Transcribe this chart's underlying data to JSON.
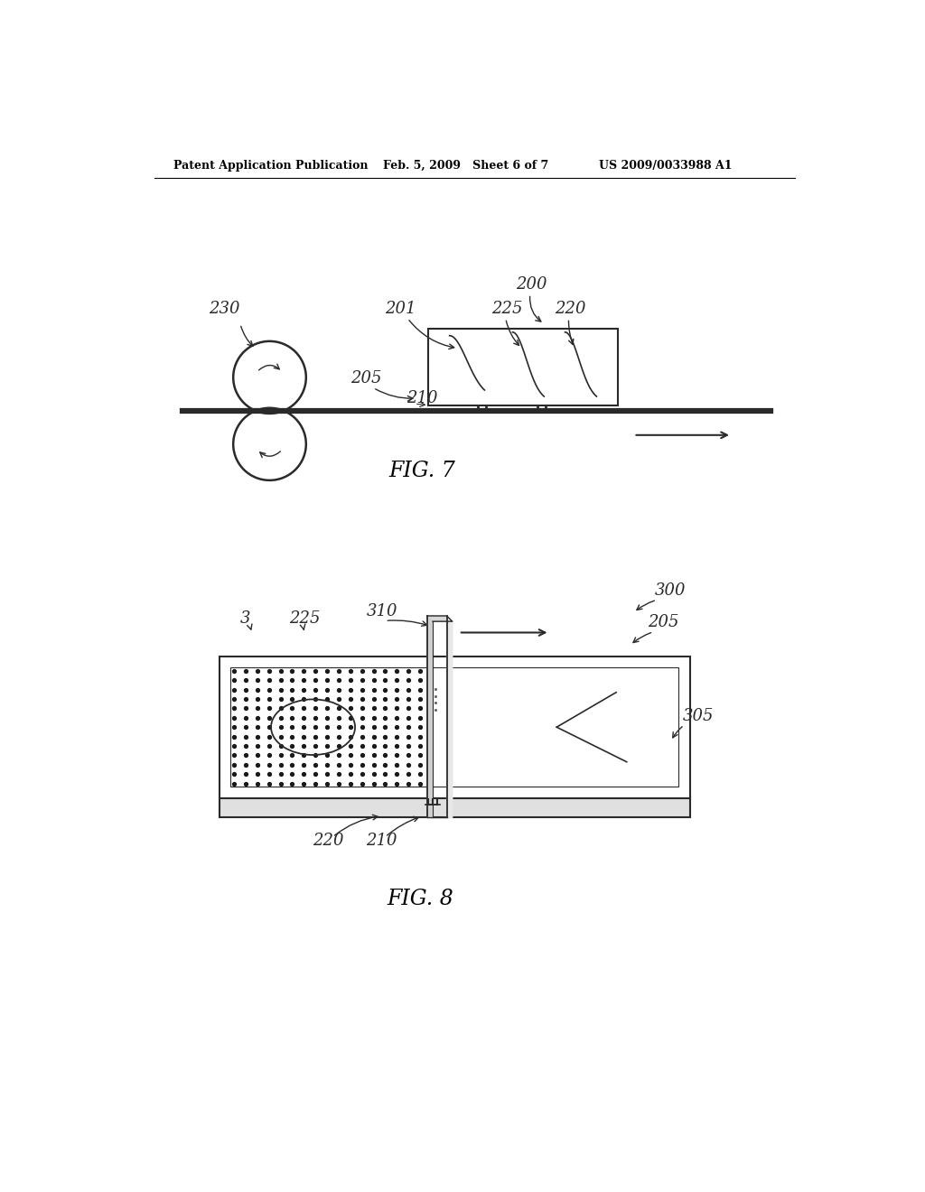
{
  "bg_color": "#ffffff",
  "header_left": "Patent Application Publication",
  "header_mid": "Feb. 5, 2009   Sheet 6 of 7",
  "header_right": "US 2009/0033988 A1",
  "fig7_caption": "FIG. 7",
  "fig8_caption": "FIG. 8",
  "line_color": "#2a2a2a",
  "label_color": "#2a2a2a"
}
